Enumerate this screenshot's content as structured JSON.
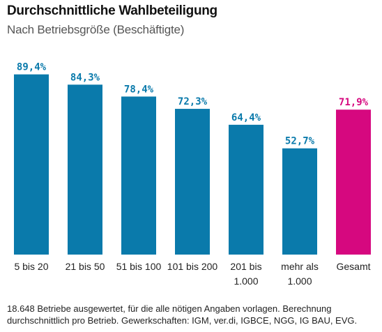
{
  "title": "Durchschnittliche Wahlbeteiligung",
  "subtitle": "Nach Betriebsgröße (Beschäftigte)",
  "footnote": {
    "line1": "18.648 Betriebe ausgewertet, für die alle nötigen Angaben vorlagen. Berechnung",
    "line2": "durchschnittlich pro Betrieb. Gewerkschaften: IGM, ver.di, IGBCE, NGG, IG BAU, EVG."
  },
  "colors": {
    "bar": "#0a7aab",
    "highlight": "#d6087f",
    "value_text": "#0a7aab",
    "highlight_text": "#d6087f"
  },
  "chart_data": {
    "type": "bar",
    "categories": [
      [
        "5 bis 20"
      ],
      [
        "21 bis 50"
      ],
      [
        "51 bis 100"
      ],
      [
        "101 bis 200"
      ],
      [
        "201 bis",
        "1.000"
      ],
      [
        "mehr als",
        "1.000"
      ],
      [
        "Gesamt"
      ]
    ],
    "values": [
      89.4,
      84.3,
      78.4,
      72.3,
      64.4,
      52.7,
      71.9
    ],
    "value_labels": [
      "89,4%",
      "84,3%",
      "78,4%",
      "72,3%",
      "64,4%",
      "52,7%",
      "71,9%"
    ],
    "highlight_index": 6,
    "ylim": [
      0,
      100
    ],
    "grid": false,
    "xlabel": "",
    "ylabel": ""
  }
}
